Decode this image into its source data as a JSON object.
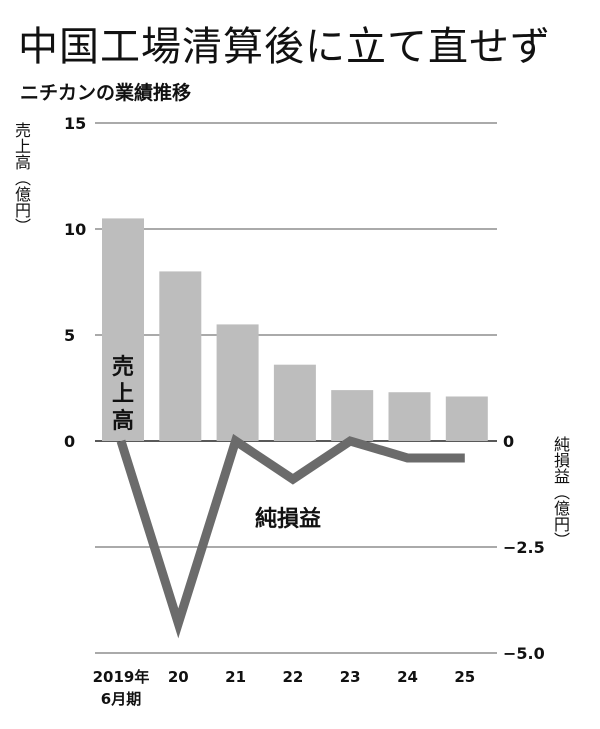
{
  "title": "中国工場清算後に立て直せず",
  "subtitle": "ニチカンの業績推移",
  "chart_data": {
    "type": "bar+line",
    "categories": [
      "2019年6月期",
      "20",
      "21",
      "22",
      "23",
      "24",
      "25"
    ],
    "category_labels": [
      [
        "2019年",
        "6月期"
      ],
      [
        "20"
      ],
      [
        "21"
      ],
      [
        "22"
      ],
      [
        "23"
      ],
      [
        "24"
      ],
      [
        "25"
      ]
    ],
    "series": [
      {
        "name": "売上高",
        "type": "bar",
        "axis": "left",
        "values": [
          10.5,
          8.0,
          5.5,
          3.6,
          2.4,
          2.3,
          2.1
        ],
        "color": "#bdbdbd"
      },
      {
        "name": "純損益",
        "type": "line",
        "axis": "right",
        "values": [
          0.0,
          -4.3,
          0.0,
          -0.9,
          0.0,
          -0.4,
          -0.4
        ],
        "color": "#6b6b6b"
      }
    ],
    "left_axis": {
      "label": "売上高（億円）",
      "ticks": [
        "15",
        "10",
        "5",
        "0"
      ],
      "tick_values": [
        15,
        10,
        5,
        0
      ],
      "ylim": [
        0,
        15
      ]
    },
    "right_axis": {
      "label": "純損益（億円）",
      "ticks": [
        "0",
        "−2.5",
        "−5.0"
      ],
      "tick_values": [
        0,
        -2.5,
        -5.0
      ],
      "ylim": [
        -5.0,
        0
      ]
    },
    "grid": true
  }
}
